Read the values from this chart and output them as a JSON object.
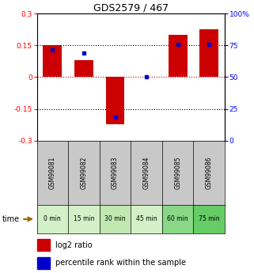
{
  "title": "GDS2579 / 467",
  "samples": [
    "GSM99081",
    "GSM99082",
    "GSM99083",
    "GSM99084",
    "GSM99085",
    "GSM99086"
  ],
  "time_labels": [
    "0 min",
    "15 min",
    "30 min",
    "45 min",
    "60 min",
    "75 min"
  ],
  "time_colors": [
    "#d4f0c8",
    "#d4f0c8",
    "#c0e8b0",
    "#d4f0c8",
    "#88d888",
    "#66cc66"
  ],
  "log2_values": [
    0.153,
    0.082,
    -0.222,
    0.002,
    0.2,
    0.225
  ],
  "percentile_values": [
    0.13,
    0.115,
    -0.19,
    0.002,
    0.155,
    0.155
  ],
  "ylim": [
    -0.3,
    0.3
  ],
  "yticks_left": [
    -0.3,
    -0.15,
    0,
    0.15,
    0.3
  ],
  "yticks_right": [
    0,
    25,
    50,
    75,
    100
  ],
  "bar_color": "#cc0000",
  "marker_color": "#0000cc",
  "zero_line_color": "#cc0000",
  "dot_line_color": "#000000",
  "sample_bg": "#c8c8c8",
  "bar_width": 0.6
}
